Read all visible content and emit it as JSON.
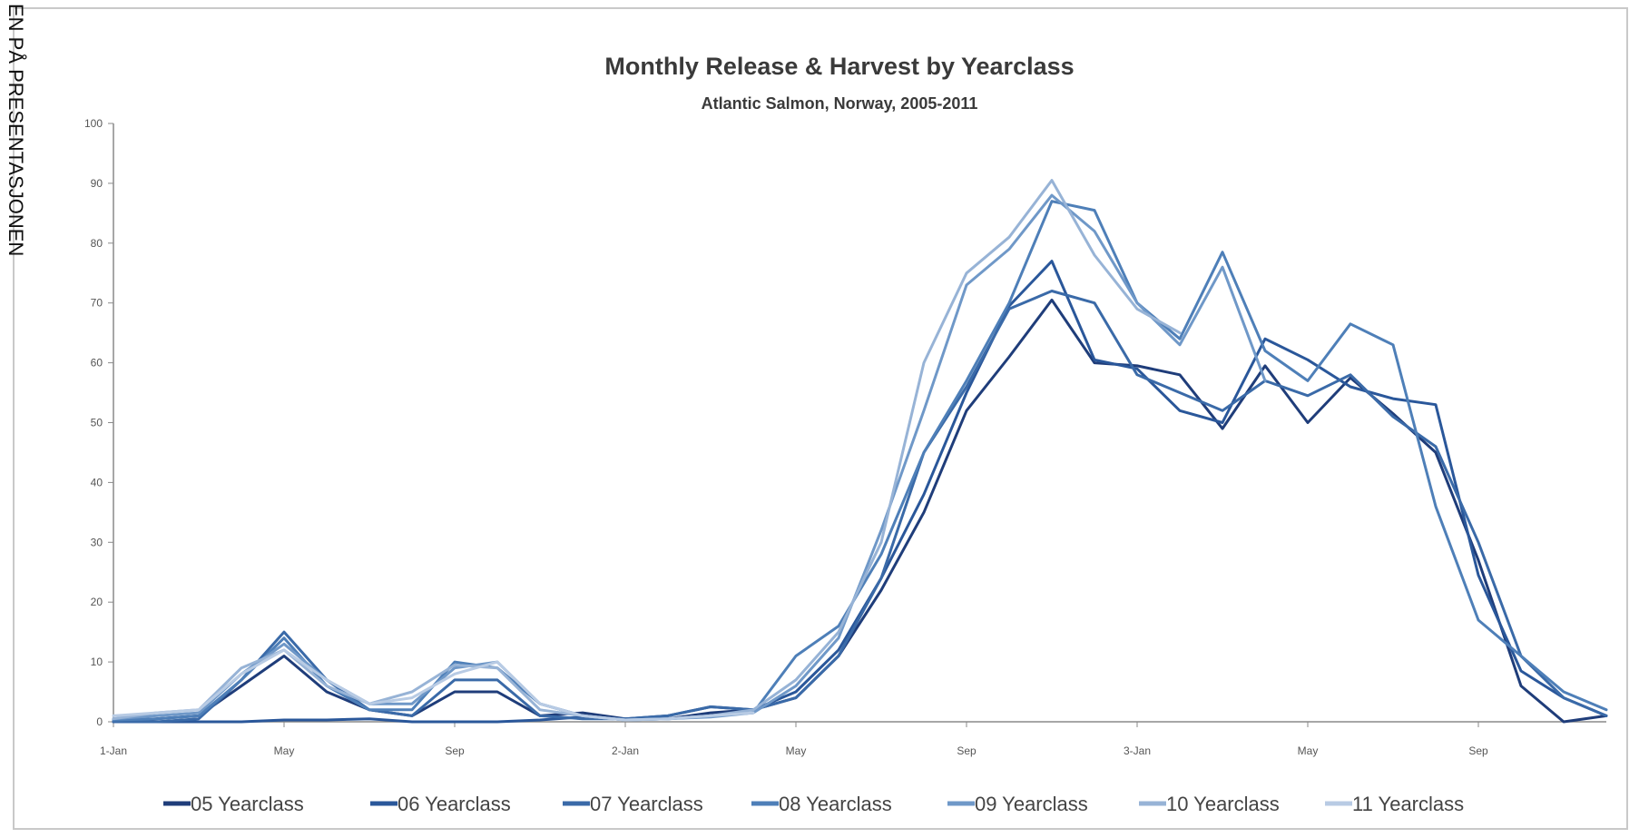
{
  "side_label": "EN PÅ PRESENTASJONEN",
  "chart_data": {
    "type": "line",
    "title": "Monthly Release & Harvest by Yearclass",
    "subtitle": "Atlantic Salmon, Norway, 2005-2011",
    "ylabel": "",
    "xlabel": "",
    "ylim": [
      0,
      100
    ],
    "yticks": [
      0,
      10,
      20,
      30,
      40,
      50,
      60,
      70,
      80,
      90,
      100
    ],
    "x": [
      0,
      1,
      2,
      3,
      4,
      5,
      6,
      7,
      8,
      9,
      10,
      11,
      12,
      13,
      14,
      15,
      16,
      17,
      18,
      19,
      20,
      21,
      22,
      23,
      24,
      25,
      26,
      27,
      28,
      29,
      30,
      31,
      32,
      33,
      34,
      35
    ],
    "xticks": [
      {
        "pos": 0,
        "label": "1-Jan"
      },
      {
        "pos": 4,
        "label": "May"
      },
      {
        "pos": 8,
        "label": "Sep"
      },
      {
        "pos": 12,
        "label": "2-Jan"
      },
      {
        "pos": 16,
        "label": "May"
      },
      {
        "pos": 20,
        "label": "Sep"
      },
      {
        "pos": 24,
        "label": "3-Jan"
      },
      {
        "pos": 28,
        "label": "May"
      },
      {
        "pos": 32,
        "label": "Sep"
      }
    ],
    "grid": false,
    "legend_position": "bottom",
    "series": [
      {
        "name": "05 Yearclass",
        "color": "#1f3d7a",
        "values": [
          0,
          0.5,
          1,
          6,
          11,
          5,
          2,
          1,
          5,
          5,
          1,
          1.5,
          0.5,
          0.5,
          1.5,
          2,
          4,
          11,
          22,
          35,
          52,
          61,
          70.5,
          60,
          59.5,
          58,
          49,
          59.5,
          50,
          57.5,
          51.5,
          45,
          27,
          6,
          0,
          1
        ]
      },
      {
        "name": "06 Yearclass",
        "color": "#2a579a",
        "values": [
          0,
          0,
          0,
          0,
          0.3,
          0.3,
          0.5,
          0,
          0,
          0,
          0.3,
          0.8,
          0.5,
          1,
          2.5,
          2,
          5,
          12,
          24,
          38,
          55,
          69.5,
          77,
          60.5,
          59,
          52,
          50,
          64,
          60.5,
          56,
          54,
          53,
          24.5,
          8.5,
          4,
          1
        ]
      },
      {
        "name": "07 Yearclass",
        "color": "#3a6aa8",
        "values": [
          0,
          0,
          0.5,
          7,
          15,
          7,
          2,
          1,
          7,
          7,
          1,
          0.5,
          0.5,
          1,
          2.5,
          2,
          4,
          11,
          24,
          45,
          56,
          69,
          72,
          70,
          58,
          55,
          52,
          57,
          54.5,
          58,
          51,
          46,
          30,
          11,
          4,
          1
        ]
      },
      {
        "name": "08 Yearclass",
        "color": "#4e7fb8",
        "values": [
          0.3,
          0.5,
          1,
          7,
          14,
          6,
          2,
          2,
          10,
          9,
          3,
          1,
          0.3,
          0.5,
          1,
          1.5,
          11,
          16,
          28,
          45,
          57,
          70,
          87,
          85.5,
          70,
          64,
          78.5,
          62,
          57,
          66.5,
          63,
          36,
          17,
          11,
          5,
          2
        ]
      },
      {
        "name": "09 Yearclass",
        "color": "#6f98c8",
        "values": [
          0.5,
          1,
          1.5,
          8,
          13,
          7,
          3,
          3,
          9,
          10,
          3,
          1,
          0.3,
          0.5,
          0.8,
          1.5,
          6,
          14,
          32,
          52,
          73,
          79,
          88,
          82,
          70,
          63,
          76,
          57,
          null,
          null,
          null,
          null,
          null,
          null,
          null,
          null
        ]
      },
      {
        "name": "10 Yearclass",
        "color": "#97b3d6",
        "values": [
          0.5,
          1.5,
          2,
          9,
          12,
          6,
          3,
          5,
          9.5,
          9,
          2,
          1,
          0.3,
          0.5,
          1,
          2,
          7,
          15,
          30,
          60,
          75,
          81,
          90.5,
          78,
          69,
          65,
          null,
          null,
          null,
          null,
          null,
          null,
          null,
          null,
          null,
          null
        ]
      },
      {
        "name": "11 Yearclass",
        "color": "#b8cbe4",
        "values": [
          1,
          1.5,
          2,
          8,
          12,
          7,
          3,
          4,
          8,
          10,
          3,
          1,
          0.3,
          0.5,
          1,
          1.5,
          null,
          null,
          null,
          null,
          null,
          null,
          null,
          null,
          null,
          null,
          null,
          null,
          null,
          null,
          null,
          null,
          null,
          null,
          null,
          null
        ]
      }
    ]
  }
}
